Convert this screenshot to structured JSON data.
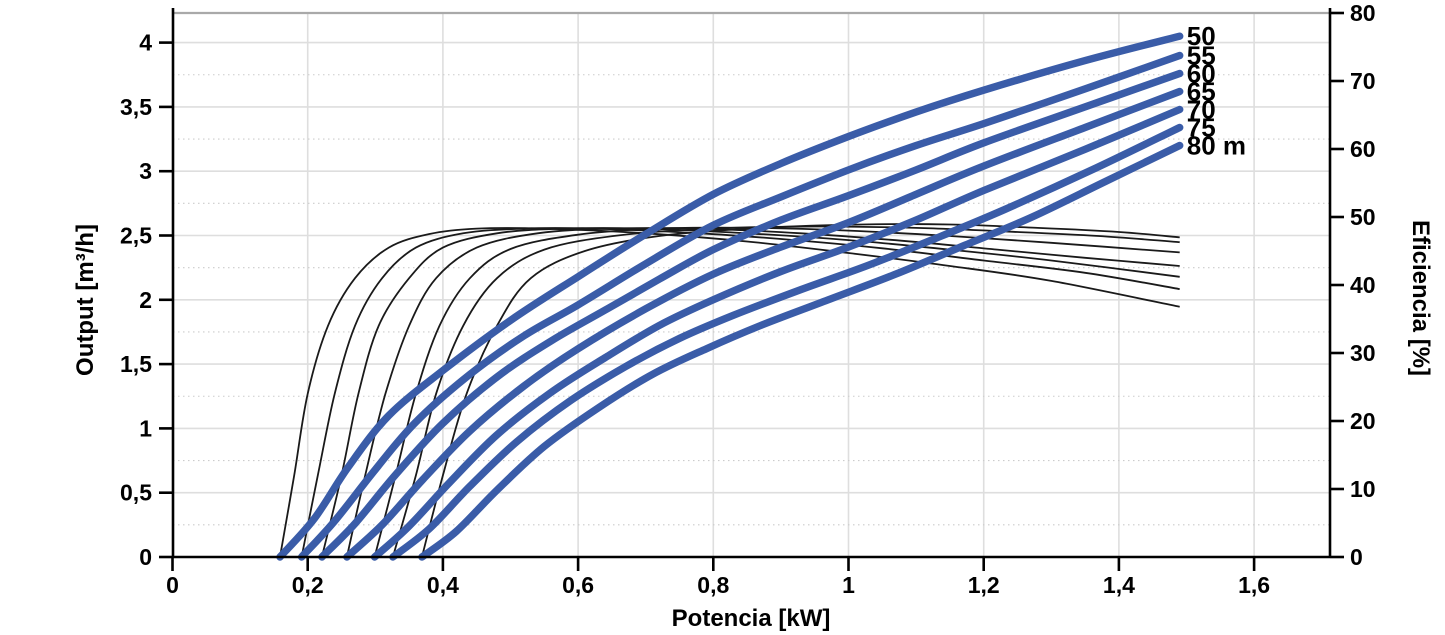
{
  "chart": {
    "x_axis": {
      "title": "Potencia [kW]",
      "ticks": [
        {
          "v": 0,
          "label": "0"
        },
        {
          "v": 0.2,
          "label": "0,2"
        },
        {
          "v": 0.4,
          "label": "0,4"
        },
        {
          "v": 0.6,
          "label": "0,6"
        },
        {
          "v": 0.8,
          "label": "0,8"
        },
        {
          "v": 1,
          "label": "1"
        },
        {
          "v": 1.2,
          "label": "1,2"
        },
        {
          "v": 1.4,
          "label": "1,4"
        },
        {
          "v": 1.6,
          "label": "1,6"
        }
      ]
    },
    "y_left": {
      "title": "Output [m³/h]",
      "ticks": [
        {
          "v": 0,
          "label": "0"
        },
        {
          "v": 0.5,
          "label": "0,5"
        },
        {
          "v": 1,
          "label": "1"
        },
        {
          "v": 1.5,
          "label": "1,5"
        },
        {
          "v": 2,
          "label": "2"
        },
        {
          "v": 2.5,
          "label": "2,5"
        },
        {
          "v": 3,
          "label": "3"
        },
        {
          "v": 3.5,
          "label": "3,5"
        },
        {
          "v": 4,
          "label": "4"
        }
      ],
      "minor_ticks": [
        0.25,
        0.75,
        1.25,
        1.75,
        2.25,
        2.75,
        3.25,
        3.75
      ]
    },
    "y_right": {
      "title": "Eficiencia [%]",
      "ticks": [
        {
          "v": 0,
          "label": "0"
        },
        {
          "v": 10,
          "label": "10"
        },
        {
          "v": 20,
          "label": "20"
        },
        {
          "v": 30,
          "label": "30"
        },
        {
          "v": 40,
          "label": "40"
        },
        {
          "v": 50,
          "label": "50"
        },
        {
          "v": 60,
          "label": "60"
        },
        {
          "v": 70,
          "label": "70"
        },
        {
          "v": 80,
          "label": "80"
        }
      ]
    },
    "colors": {
      "output_curve": "#3a5ca8",
      "efficiency_curve": "#1a1a1a",
      "grid_major": "#dedede",
      "grid_minor": "#cccccc",
      "plot_top_border": "#a9a9a9",
      "axis": "#000000"
    }
  },
  "chart_data": {
    "type": "line",
    "title": "",
    "xlabel": "Potencia [kW]",
    "ylabel_left": "Output [m³/h]",
    "ylabel_right": "Eficiencia [%]",
    "x_range": [
      0,
      1.71
    ],
    "y_left_range": [
      0,
      4.23
    ],
    "y_right_range": [
      0,
      80
    ],
    "grid": true,
    "legend": "curve end labels (head in meters)",
    "series": [
      {
        "name": "Output 50 m",
        "label": "50",
        "head_m": 50,
        "axis": "left",
        "unit": "m³/h",
        "style": "thick-blue",
        "points": [
          [
            0.159,
            0
          ],
          [
            0.21,
            0.3
          ],
          [
            0.26,
            0.7
          ],
          [
            0.32,
            1.1
          ],
          [
            0.4,
            1.45
          ],
          [
            0.5,
            1.84
          ],
          [
            0.6,
            2.18
          ],
          [
            0.7,
            2.51
          ],
          [
            0.8,
            2.82
          ],
          [
            0.9,
            3.06
          ],
          [
            1.0,
            3.27
          ],
          [
            1.1,
            3.46
          ],
          [
            1.2,
            3.63
          ],
          [
            1.35,
            3.86
          ],
          [
            1.49,
            4.05
          ]
        ]
      },
      {
        "name": "Output 55 m",
        "label": "55",
        "head_m": 55,
        "axis": "left",
        "unit": "m³/h",
        "style": "thick-blue",
        "points": [
          [
            0.191,
            0
          ],
          [
            0.24,
            0.28
          ],
          [
            0.3,
            0.68
          ],
          [
            0.36,
            1.05
          ],
          [
            0.44,
            1.42
          ],
          [
            0.52,
            1.72
          ],
          [
            0.6,
            1.96
          ],
          [
            0.7,
            2.28
          ],
          [
            0.8,
            2.58
          ],
          [
            0.9,
            2.8
          ],
          [
            1.0,
            3.01
          ],
          [
            1.1,
            3.2
          ],
          [
            1.2,
            3.37
          ],
          [
            1.35,
            3.64
          ],
          [
            1.49,
            3.9
          ]
        ]
      },
      {
        "name": "Output 60 m",
        "label": "60",
        "head_m": 60,
        "axis": "left",
        "unit": "m³/h",
        "style": "thick-blue",
        "points": [
          [
            0.221,
            0
          ],
          [
            0.27,
            0.26
          ],
          [
            0.33,
            0.64
          ],
          [
            0.4,
            1.04
          ],
          [
            0.48,
            1.4
          ],
          [
            0.56,
            1.68
          ],
          [
            0.64,
            1.92
          ],
          [
            0.72,
            2.16
          ],
          [
            0.8,
            2.39
          ],
          [
            0.9,
            2.62
          ],
          [
            1.0,
            2.81
          ],
          [
            1.1,
            3.01
          ],
          [
            1.2,
            3.22
          ],
          [
            1.35,
            3.5
          ],
          [
            1.49,
            3.76
          ]
        ]
      },
      {
        "name": "Output 65 m",
        "label": "65",
        "head_m": 65,
        "axis": "left",
        "unit": "m³/h",
        "style": "thick-blue",
        "points": [
          [
            0.258,
            0
          ],
          [
            0.31,
            0.25
          ],
          [
            0.37,
            0.6
          ],
          [
            0.44,
            0.98
          ],
          [
            0.52,
            1.33
          ],
          [
            0.6,
            1.62
          ],
          [
            0.7,
            1.93
          ],
          [
            0.8,
            2.2
          ],
          [
            0.9,
            2.41
          ],
          [
            1.0,
            2.6
          ],
          [
            1.1,
            2.82
          ],
          [
            1.2,
            3.04
          ],
          [
            1.35,
            3.34
          ],
          [
            1.49,
            3.62
          ]
        ]
      },
      {
        "name": "Output 70 m",
        "label": "70",
        "head_m": 70,
        "axis": "left",
        "unit": "m³/h",
        "style": "thick-blue",
        "points": [
          [
            0.299,
            0
          ],
          [
            0.35,
            0.24
          ],
          [
            0.41,
            0.58
          ],
          [
            0.48,
            0.95
          ],
          [
            0.56,
            1.28
          ],
          [
            0.64,
            1.55
          ],
          [
            0.72,
            1.8
          ],
          [
            0.8,
            2.0
          ],
          [
            0.9,
            2.22
          ],
          [
            1.0,
            2.41
          ],
          [
            1.1,
            2.62
          ],
          [
            1.2,
            2.85
          ],
          [
            1.35,
            3.17
          ],
          [
            1.49,
            3.48
          ]
        ]
      },
      {
        "name": "Output 75 m",
        "label": "75",
        "head_m": 75,
        "axis": "left",
        "unit": "m³/h",
        "style": "thick-blue",
        "points": [
          [
            0.326,
            0
          ],
          [
            0.38,
            0.22
          ],
          [
            0.44,
            0.55
          ],
          [
            0.51,
            0.9
          ],
          [
            0.59,
            1.22
          ],
          [
            0.67,
            1.48
          ],
          [
            0.75,
            1.7
          ],
          [
            0.83,
            1.88
          ],
          [
            0.93,
            2.08
          ],
          [
            1.03,
            2.27
          ],
          [
            1.13,
            2.48
          ],
          [
            1.23,
            2.7
          ],
          [
            1.36,
            3.01
          ],
          [
            1.49,
            3.34
          ]
        ]
      },
      {
        "name": "Output 80 m",
        "label": "80 m",
        "head_m": 80,
        "axis": "left",
        "unit": "m³/h",
        "style": "thick-blue",
        "points": [
          [
            0.369,
            0
          ],
          [
            0.42,
            0.2
          ],
          [
            0.48,
            0.52
          ],
          [
            0.55,
            0.86
          ],
          [
            0.63,
            1.16
          ],
          [
            0.71,
            1.42
          ],
          [
            0.79,
            1.62
          ],
          [
            0.87,
            1.8
          ],
          [
            0.97,
            2.0
          ],
          [
            1.07,
            2.2
          ],
          [
            1.17,
            2.42
          ],
          [
            1.27,
            2.64
          ],
          [
            1.38,
            2.92
          ],
          [
            1.49,
            3.2
          ]
        ]
      },
      {
        "name": "Eficiencia 50 m",
        "head_m": 50,
        "axis": "right",
        "unit": "%",
        "style": "thin-black",
        "points": [
          [
            0.159,
            0
          ],
          [
            0.18,
            12
          ],
          [
            0.2,
            24
          ],
          [
            0.23,
            34
          ],
          [
            0.27,
            41
          ],
          [
            0.32,
            45.5
          ],
          [
            0.38,
            47.5
          ],
          [
            0.45,
            48.3
          ],
          [
            0.55,
            48.3
          ],
          [
            0.7,
            47.6
          ],
          [
            0.85,
            46.4
          ],
          [
            1.0,
            44.7
          ],
          [
            1.15,
            42.8
          ],
          [
            1.3,
            40.6
          ],
          [
            1.49,
            36.8
          ]
        ]
      },
      {
        "name": "Eficiencia 55 m",
        "head_m": 55,
        "axis": "right",
        "unit": "%",
        "style": "thin-black",
        "points": [
          [
            0.191,
            0
          ],
          [
            0.215,
            12
          ],
          [
            0.24,
            24
          ],
          [
            0.27,
            34
          ],
          [
            0.31,
            41
          ],
          [
            0.36,
            45.5
          ],
          [
            0.43,
            47.6
          ],
          [
            0.52,
            48.3
          ],
          [
            0.62,
            48.3
          ],
          [
            0.78,
            47.6
          ],
          [
            0.92,
            46.6
          ],
          [
            1.05,
            45.4
          ],
          [
            1.2,
            43.6
          ],
          [
            1.35,
            41.8
          ],
          [
            1.49,
            39.4
          ]
        ]
      },
      {
        "name": "Eficiencia 60 m",
        "head_m": 60,
        "axis": "right",
        "unit": "%",
        "style": "thin-black",
        "points": [
          [
            0.221,
            0
          ],
          [
            0.25,
            12
          ],
          [
            0.275,
            24
          ],
          [
            0.305,
            34
          ],
          [
            0.35,
            41
          ],
          [
            0.4,
            45.5
          ],
          [
            0.48,
            47.6
          ],
          [
            0.58,
            48.3
          ],
          [
            0.7,
            48.3
          ],
          [
            0.85,
            47.6
          ],
          [
            1.0,
            46.6
          ],
          [
            1.15,
            45.2
          ],
          [
            1.3,
            43.6
          ],
          [
            1.49,
            41.2
          ]
        ]
      },
      {
        "name": "Eficiencia 65 m",
        "head_m": 65,
        "axis": "right",
        "unit": "%",
        "style": "thin-black",
        "points": [
          [
            0.258,
            0
          ],
          [
            0.285,
            12
          ],
          [
            0.315,
            24
          ],
          [
            0.35,
            34
          ],
          [
            0.39,
            41
          ],
          [
            0.45,
            45.5
          ],
          [
            0.54,
            47.6
          ],
          [
            0.65,
            48.3
          ],
          [
            0.78,
            48.3
          ],
          [
            0.93,
            47.6
          ],
          [
            1.08,
            46.5
          ],
          [
            1.22,
            45.2
          ],
          [
            1.35,
            44.0
          ],
          [
            1.49,
            42.8
          ]
        ]
      },
      {
        "name": "Eficiencia 70 m",
        "head_m": 70,
        "axis": "right",
        "unit": "%",
        "style": "thin-black",
        "points": [
          [
            0.299,
            0
          ],
          [
            0.33,
            12
          ],
          [
            0.36,
            24
          ],
          [
            0.395,
            34
          ],
          [
            0.44,
            41
          ],
          [
            0.5,
            45.3
          ],
          [
            0.6,
            47.4
          ],
          [
            0.72,
            48.3
          ],
          [
            0.86,
            48.4
          ],
          [
            1.0,
            48.0
          ],
          [
            1.15,
            47.2
          ],
          [
            1.3,
            46.2
          ],
          [
            1.49,
            44.8
          ]
        ]
      },
      {
        "name": "Eficiencia 75 m",
        "head_m": 75,
        "axis": "right",
        "unit": "%",
        "style": "thin-black",
        "points": [
          [
            0.326,
            0
          ],
          [
            0.36,
            12
          ],
          [
            0.39,
            24
          ],
          [
            0.43,
            34
          ],
          [
            0.48,
            41
          ],
          [
            0.55,
            45.2
          ],
          [
            0.66,
            47.3
          ],
          [
            0.8,
            48.3
          ],
          [
            0.95,
            48.6
          ],
          [
            1.1,
            48.4
          ],
          [
            1.25,
            47.8
          ],
          [
            1.37,
            47.2
          ],
          [
            1.49,
            46.3
          ]
        ]
      },
      {
        "name": "Eficiencia 80 m",
        "head_m": 80,
        "axis": "right",
        "unit": "%",
        "style": "thin-black",
        "points": [
          [
            0.369,
            0
          ],
          [
            0.4,
            12
          ],
          [
            0.435,
            24
          ],
          [
            0.48,
            34
          ],
          [
            0.53,
            41
          ],
          [
            0.61,
            45.0
          ],
          [
            0.72,
            47.2
          ],
          [
            0.87,
            48.4
          ],
          [
            1.02,
            48.9
          ],
          [
            1.15,
            48.9
          ],
          [
            1.28,
            48.4
          ],
          [
            1.4,
            47.8
          ],
          [
            1.49,
            47.0
          ]
        ]
      }
    ]
  }
}
